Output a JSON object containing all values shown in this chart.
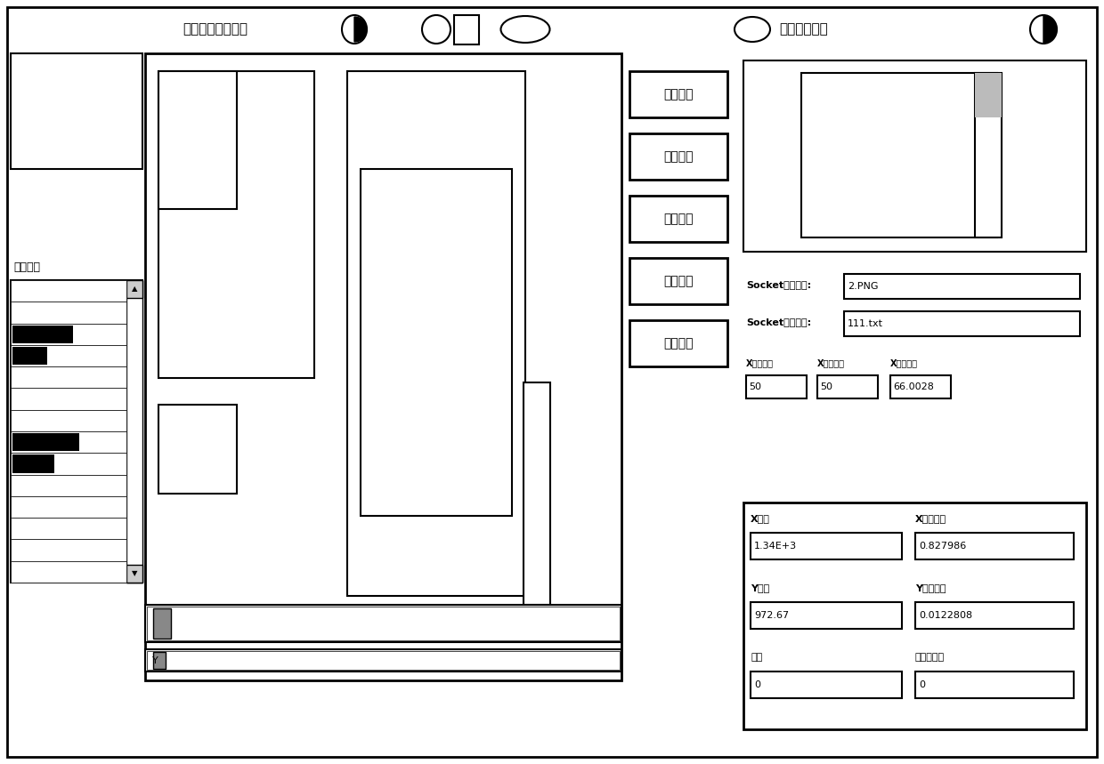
{
  "bg_color": "#ffffff",
  "title_top": "中心轴线显示开关",
  "title_top_right": "自动识别开关",
  "label_leibiejiexian": "类别性界",
  "buttons": [
    {
      "label": "连续图像"
    },
    {
      "label": "制作模板"
    },
    {
      "label": "装载参数"
    },
    {
      "label": "识别定位"
    },
    {
      "label": "保存参数"
    }
  ],
  "socket_rows": [
    {
      "label": "Socket模板文件:",
      "value": "2.PNG"
    },
    {
      "label": "Socket参数文件:",
      "value": "111.txt"
    }
  ],
  "pixel_rows": [
    {
      "label": "X单位像素",
      "value": "50"
    },
    {
      "label": "X单位像素",
      "value": "50"
    },
    {
      "label": "X单位像素",
      "value": "66.0028"
    }
  ],
  "value_rows": [
    {
      "label": "X粗值",
      "value": "1.34E+3",
      "label2": "X粗值差值",
      "value2": "0.827986"
    },
    {
      "label": "Y粗值",
      "value": "972.67",
      "label2": "Y粗值差值",
      "value2": "0.0122808"
    },
    {
      "label": "角度",
      "value": "0",
      "label2": "角度调整值",
      "value2": "0"
    }
  ]
}
